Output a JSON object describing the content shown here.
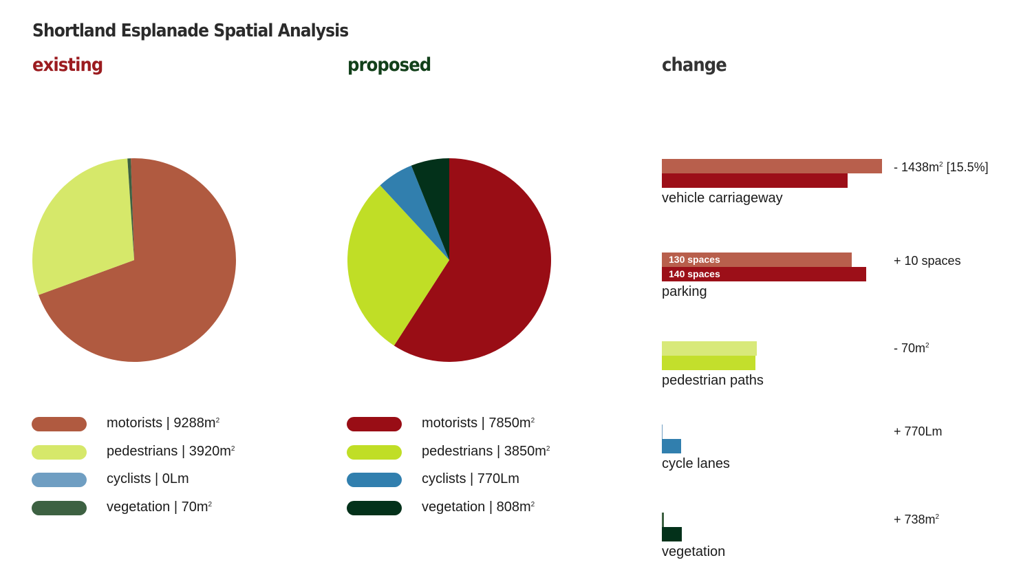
{
  "title": "Shortland Esplanade Spatial Analysis",
  "sections": {
    "existing": {
      "label": "existing",
      "color": "#9b1b1f"
    },
    "proposed": {
      "label": "proposed",
      "color": "#12401a"
    },
    "change": {
      "label": "change",
      "color": "#333333"
    }
  },
  "chart_data": [
    {
      "type": "pie",
      "title": "existing",
      "slices": [
        {
          "label": "motorists",
          "value": 9288,
          "color": "#b05a40"
        },
        {
          "label": "pedestrians",
          "value": 3920,
          "color": "#d6e86a"
        },
        {
          "label": "cyclists",
          "value": 0,
          "color": "#6f9ec2"
        },
        {
          "label": "vegetation",
          "value": 70,
          "color": "#3d6142"
        }
      ],
      "legend": [
        {
          "label": "motorists",
          "value": "9288m",
          "sup": "2",
          "color": "#b05a40"
        },
        {
          "label": "pedestrians",
          "value": "3920m",
          "sup": "2",
          "color": "#d6e86a"
        },
        {
          "label": "cyclists",
          "value": "0Lm",
          "sup": "",
          "color": "#6f9ec2"
        },
        {
          "label": "vegetation",
          "value": "70m",
          "sup": "2",
          "color": "#3d6142"
        }
      ]
    },
    {
      "type": "pie",
      "title": "proposed",
      "slices": [
        {
          "label": "motorists",
          "value": 7850,
          "color": "#990d15"
        },
        {
          "label": "pedestrians",
          "value": 3850,
          "color": "#c0de26"
        },
        {
          "label": "cyclists",
          "value": 770,
          "color": "#317fae"
        },
        {
          "label": "vegetation",
          "value": 808,
          "color": "#03311a"
        }
      ],
      "legend": [
        {
          "label": "motorists",
          "value": "7850m",
          "sup": "2",
          "color": "#990d15"
        },
        {
          "label": "pedestrians",
          "value": "3850m",
          "sup": "2",
          "color": "#c0de26"
        },
        {
          "label": "cyclists",
          "value": "770Lm",
          "sup": "",
          "color": "#317fae"
        },
        {
          "label": "vegetation",
          "value": "808m",
          "sup": "2",
          "color": "#03311a"
        }
      ]
    },
    {
      "type": "bar",
      "title": "change",
      "items": [
        {
          "label": "vehicle carriageway",
          "existing": 9288,
          "proposed": 7850,
          "existing_text": "",
          "proposed_text": "",
          "change_text": "- 1438m",
          "change_sup": "2",
          "change_suffix": " [15.5%]",
          "existing_color": "#b85f4c",
          "proposed_color": "#9c0f18"
        },
        {
          "label": "parking",
          "existing": 130,
          "proposed": 140,
          "existing_text": "130 spaces",
          "proposed_text": "140 spaces",
          "change_text": "+ 10 spaces",
          "change_sup": "",
          "change_suffix": "",
          "existing_color": "#b85f4c",
          "proposed_color": "#9c0f18"
        },
        {
          "label": "pedestrian paths",
          "existing": 3920,
          "proposed": 3850,
          "existing_text": "",
          "proposed_text": "",
          "change_text": "- 70m",
          "change_sup": "2",
          "change_suffix": "",
          "existing_color": "#d8e97a",
          "proposed_color": "#c3df2c"
        },
        {
          "label": "cycle lanes",
          "existing": 0,
          "proposed": 770,
          "existing_text": "",
          "proposed_text": "",
          "change_text": "+ 770Lm",
          "change_sup": "",
          "change_suffix": "",
          "existing_color": "#6f9ec2",
          "proposed_color": "#317fae"
        },
        {
          "label": "vegetation",
          "existing": 70,
          "proposed": 808,
          "existing_text": "",
          "proposed_text": "",
          "change_text": "+ 738m",
          "change_sup": "2",
          "change_suffix": "",
          "existing_color": "#3d6142",
          "proposed_color": "#03311a"
        }
      ]
    }
  ]
}
